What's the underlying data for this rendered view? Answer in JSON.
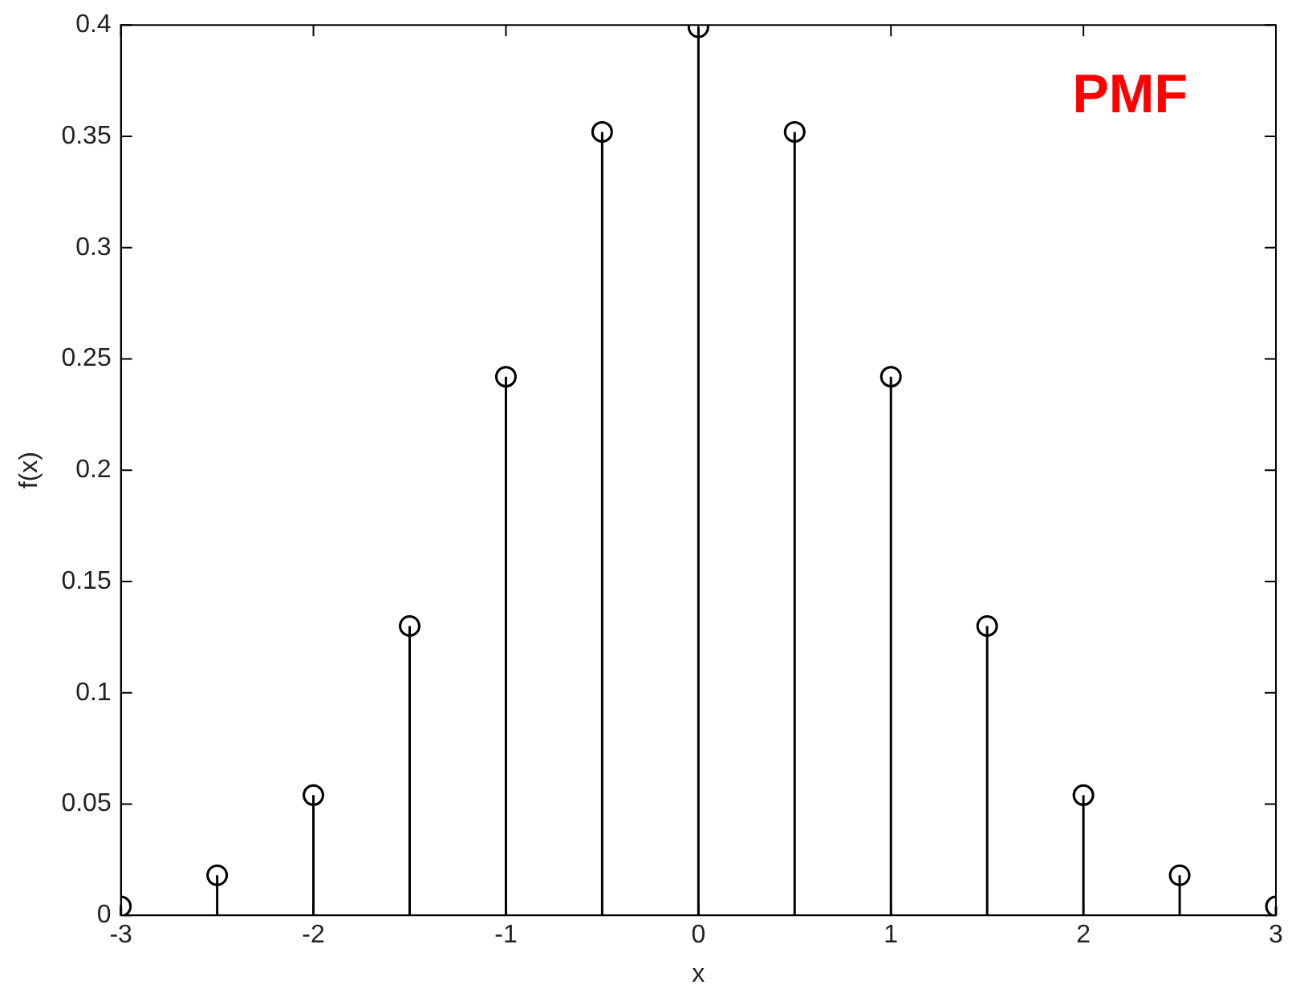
{
  "chart_data": {
    "type": "lollipop",
    "xlabel": "x",
    "ylabel": "f(x)",
    "annotations": [
      "PMF"
    ],
    "x": [
      -3,
      -2.5,
      -2,
      -1.5,
      -1,
      -0.5,
      0,
      0.5,
      1,
      1.5,
      2,
      2.5,
      3
    ],
    "values": [
      0.004,
      0.018,
      0.054,
      0.13,
      0.242,
      0.352,
      0.399,
      0.352,
      0.242,
      0.13,
      0.054,
      0.018,
      0.004
    ],
    "color": "#000000",
    "marker": "circle",
    "xlim": [
      -3,
      3
    ],
    "xticks": [
      -3,
      -2,
      -1,
      0,
      1,
      2,
      3
    ],
    "ylim": [
      0,
      0.4
    ],
    "yticks": [
      0,
      0.05,
      0.1,
      0.15,
      0.2,
      0.25,
      0.3,
      0.35,
      0.4
    ],
    "legend": false
  }
}
